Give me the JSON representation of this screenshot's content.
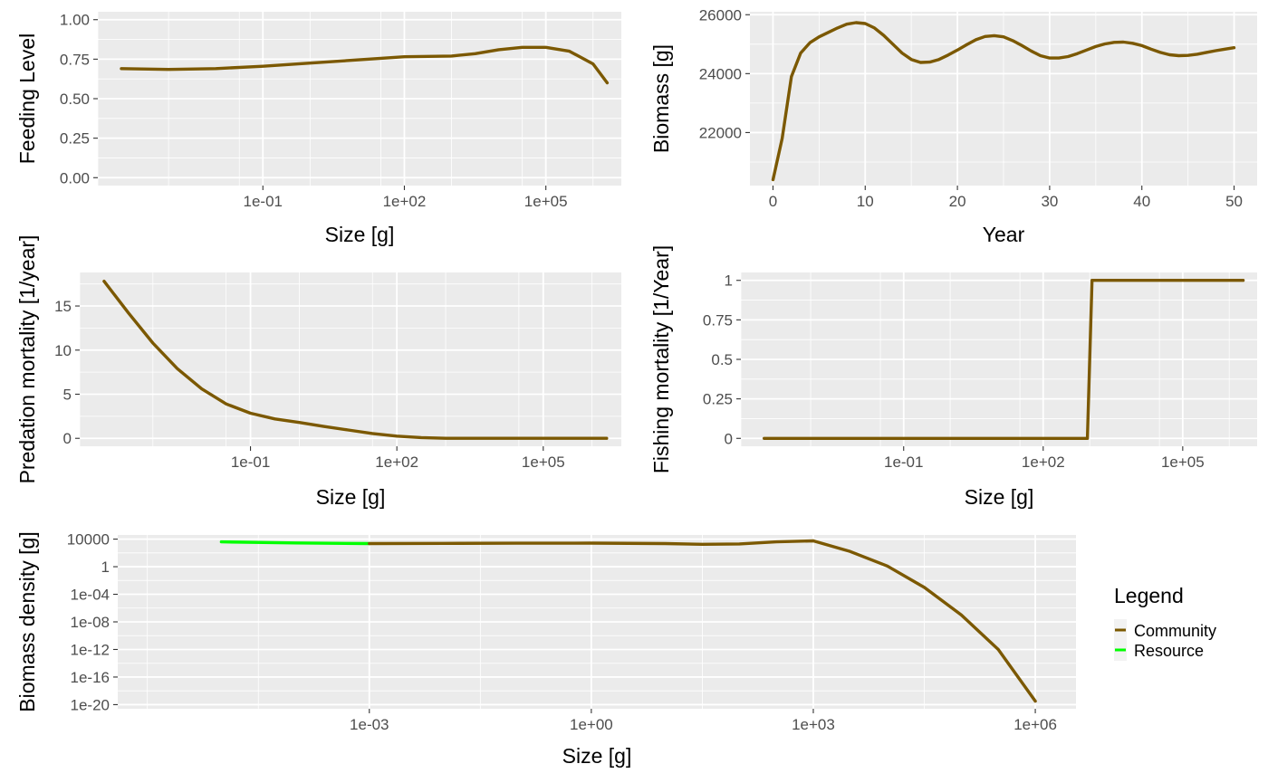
{
  "colors": {
    "community": "#7b5800",
    "resource": "#00ff00"
  },
  "legend": {
    "title": "Legend",
    "entries": [
      {
        "label": "Community",
        "color": "#7b5800"
      },
      {
        "label": "Resource",
        "color": "#00ff00"
      }
    ]
  },
  "chart_data": [
    {
      "id": "feeding",
      "type": "line",
      "xlabel": "Size [g]",
      "ylabel": "Feeding Level",
      "xscale": "log10",
      "xlim": [
        -4.5,
        6.6
      ],
      "ylim": [
        -0.05,
        1.05
      ],
      "x_ticks": [
        "1e-01",
        "1e+02",
        "1e+05"
      ],
      "y_ticks": [
        "0.00",
        "0.25",
        "0.50",
        "0.75",
        "1.00"
      ],
      "series": [
        {
          "color": "#7b5800",
          "x": [
            -4,
            -3,
            -2,
            -1,
            0,
            1,
            2,
            3,
            3.5,
            4,
            4.5,
            5,
            5.5,
            6,
            6.3
          ],
          "y": [
            0.69,
            0.685,
            0.69,
            0.705,
            0.725,
            0.745,
            0.765,
            0.77,
            0.785,
            0.81,
            0.825,
            0.825,
            0.8,
            0.72,
            0.6
          ]
        }
      ]
    },
    {
      "id": "biomass",
      "type": "line",
      "xlabel": "Year",
      "ylabel": "Biomass [g]",
      "xlim": [
        -2.5,
        52.5
      ],
      "ylim": [
        20200,
        26100
      ],
      "x_ticks": [
        "0",
        "10",
        "20",
        "30",
        "40",
        "50"
      ],
      "y_ticks": [
        "22000",
        "24000",
        "26000"
      ],
      "series": [
        {
          "color": "#7b5800",
          "x": [
            0,
            1,
            2,
            3,
            4,
            5,
            6,
            7,
            8,
            9,
            10,
            11,
            12,
            13,
            14,
            15,
            16,
            17,
            18,
            19,
            20,
            21,
            22,
            23,
            24,
            25,
            26,
            27,
            28,
            29,
            30,
            31,
            32,
            33,
            34,
            35,
            36,
            37,
            38,
            39,
            40,
            41,
            42,
            43,
            44,
            45,
            46,
            47,
            48,
            49,
            50
          ],
          "y": [
            20400,
            21800,
            23900,
            24700,
            25050,
            25250,
            25400,
            25550,
            25680,
            25730,
            25700,
            25550,
            25300,
            25000,
            24700,
            24480,
            24380,
            24390,
            24480,
            24630,
            24800,
            24980,
            25150,
            25260,
            25290,
            25250,
            25120,
            24950,
            24770,
            24610,
            24530,
            24530,
            24580,
            24680,
            24800,
            24920,
            25010,
            25060,
            25070,
            25030,
            24950,
            24830,
            24720,
            24640,
            24610,
            24620,
            24660,
            24720,
            24780,
            24830,
            24880
          ]
        }
      ]
    },
    {
      "id": "predation",
      "type": "line",
      "xlabel": "Size [g]",
      "ylabel": "Predation mortality [1/year]",
      "xscale": "log10",
      "xlim": [
        -4.5,
        6.6
      ],
      "ylim": [
        -0.9,
        18.8
      ],
      "x_ticks": [
        "1e-01",
        "1e+02",
        "1e+05"
      ],
      "y_ticks": [
        "0",
        "5",
        "10",
        "15"
      ],
      "series": [
        {
          "color": "#7b5800",
          "x": [
            -4,
            -3.5,
            -3,
            -2.5,
            -2,
            -1.5,
            -1,
            -0.5,
            0,
            0.5,
            1,
            1.5,
            2,
            2.5,
            3,
            4,
            5,
            6.3
          ],
          "y": [
            17.8,
            14.2,
            10.8,
            7.9,
            5.6,
            3.9,
            2.85,
            2.2,
            1.8,
            1.35,
            0.95,
            0.55,
            0.25,
            0.08,
            0.0,
            0.0,
            0.0,
            0.0
          ]
        }
      ]
    },
    {
      "id": "fishing",
      "type": "line",
      "xlabel": "Size [g]",
      "ylabel": "Fishing mortality [1/Year]",
      "xscale": "log10",
      "xlim": [
        -4.5,
        6.6
      ],
      "ylim": [
        -0.05,
        1.05
      ],
      "x_ticks": [
        "1e-01",
        "1e+02",
        "1e+05"
      ],
      "y_ticks": [
        "0",
        "0.25",
        "0.5",
        "0.75",
        "1"
      ],
      "series": [
        {
          "color": "#7b5800",
          "x": [
            -4,
            2.95,
            3.05,
            6.3
          ],
          "y": [
            0,
            0,
            1,
            1
          ]
        }
      ]
    },
    {
      "id": "spectrum",
      "type": "line",
      "xlabel": "Size [g]",
      "ylabel": "Biomass density [g]",
      "xscale": "log10",
      "yscale": "log10",
      "xlim": [
        -6.4,
        6.55
      ],
      "ylim": [
        -20.6,
        4.6
      ],
      "x_ticks": [
        "1e-03",
        "1e+00",
        "1e+03",
        "1e+06"
      ],
      "y_ticks": [
        "1e-20",
        "1e-16",
        "1e-12",
        "1e-08",
        "1e-04",
        "1",
        "10000"
      ],
      "series": [
        {
          "name": "Resource",
          "color": "#00ff00",
          "x": [
            -5,
            -4,
            -3
          ],
          "y": [
            3.6,
            3.45,
            3.35
          ]
        },
        {
          "name": "Community",
          "color": "#7b5800",
          "x": [
            -3,
            -2,
            -1,
            0,
            1,
            1.5,
            2,
            2.5,
            3,
            3.5,
            4,
            4.5,
            5,
            5.5,
            6
          ],
          "y": [
            3.35,
            3.38,
            3.4,
            3.42,
            3.35,
            3.25,
            3.3,
            3.6,
            3.75,
            2.2,
            0.1,
            -3.0,
            -7.0,
            -12.0,
            -19.5
          ]
        }
      ]
    }
  ]
}
